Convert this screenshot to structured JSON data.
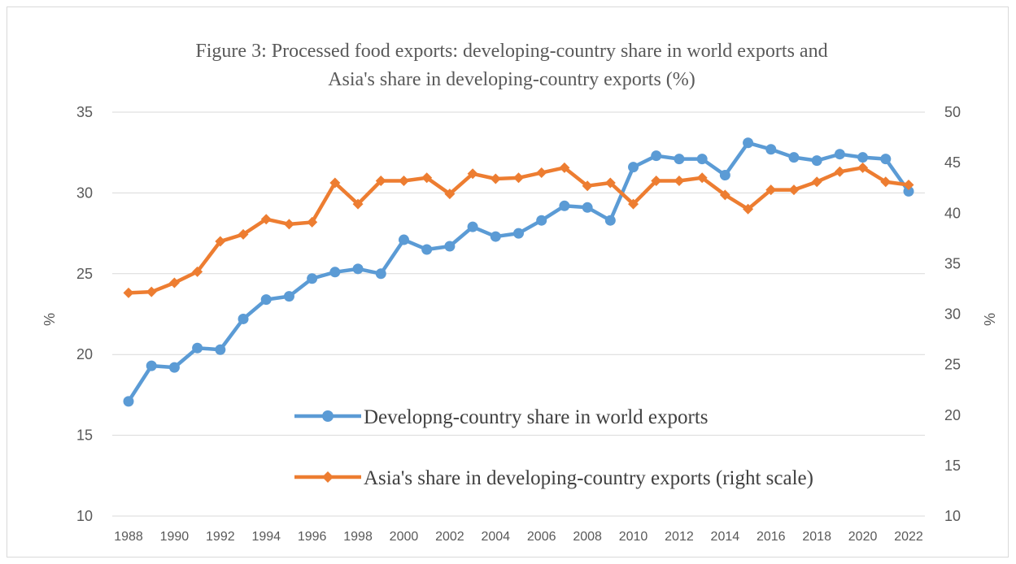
{
  "colors": {
    "blue": "#5b9bd5",
    "orange": "#ed7d31",
    "grid": "#d9d9d9",
    "text": "#595959"
  },
  "chart_data": {
    "type": "line",
    "title": "Figure 3: Processed food exports: developing-country share in world exports and Asia's share in developing-country exports (%)",
    "title_lines": [
      "Figure 3: Processed food exports: developing-country share in world exports and",
      "Asia's share in developing-country exports (%)"
    ],
    "ylabel": "%",
    "y2label": "%",
    "ylim": [
      10,
      35
    ],
    "y2lim": [
      10,
      50
    ],
    "yticks": [
      "10",
      "15",
      "20",
      "25",
      "30",
      "35"
    ],
    "y2ticks": [
      "10",
      "15",
      "20",
      "25",
      "30",
      "35",
      "40",
      "45",
      "50"
    ],
    "xtick_labels": [
      "1988",
      "1990",
      "1992",
      "1994",
      "1996",
      "1998",
      "2000",
      "2002",
      "2004",
      "2006",
      "2008",
      "2010",
      "2012",
      "2014",
      "2016",
      "2018",
      "2020",
      "2022"
    ],
    "grid": true,
    "legend": "center",
    "x": [
      1988,
      1989,
      1990,
      1991,
      1992,
      1993,
      1994,
      1995,
      1996,
      1997,
      1998,
      1999,
      2000,
      2001,
      2002,
      2003,
      2004,
      2005,
      2006,
      2007,
      2008,
      2009,
      2010,
      2011,
      2012,
      2013,
      2014,
      2015,
      2016,
      2017,
      2018,
      2019,
      2020,
      2021,
      2022
    ],
    "series": [
      {
        "name": "Developng-country share in world exports",
        "axis": "left",
        "values": [
          17.1,
          19.3,
          19.2,
          20.4,
          20.3,
          22.2,
          23.4,
          23.6,
          24.7,
          25.1,
          25.3,
          25.0,
          27.1,
          26.5,
          26.7,
          27.9,
          27.3,
          27.5,
          28.3,
          29.2,
          29.1,
          28.3,
          31.6,
          32.3,
          32.1,
          32.1,
          31.1,
          33.1,
          32.7,
          32.2,
          32.0,
          32.4,
          32.2,
          32.1,
          30.1
        ]
      },
      {
        "name": "Asia's share in developing-country exports (right scale)",
        "axis": "right",
        "values": [
          32.1,
          32.2,
          33.1,
          34.2,
          37.2,
          37.9,
          39.4,
          38.9,
          39.1,
          43.0,
          40.9,
          43.2,
          43.2,
          43.5,
          41.9,
          43.9,
          43.4,
          43.5,
          44.0,
          44.5,
          42.7,
          43.0,
          40.9,
          43.2,
          43.2,
          43.5,
          41.8,
          40.4,
          42.3,
          42.3,
          43.1,
          44.1,
          44.5,
          43.1,
          42.8
        ]
      }
    ]
  }
}
